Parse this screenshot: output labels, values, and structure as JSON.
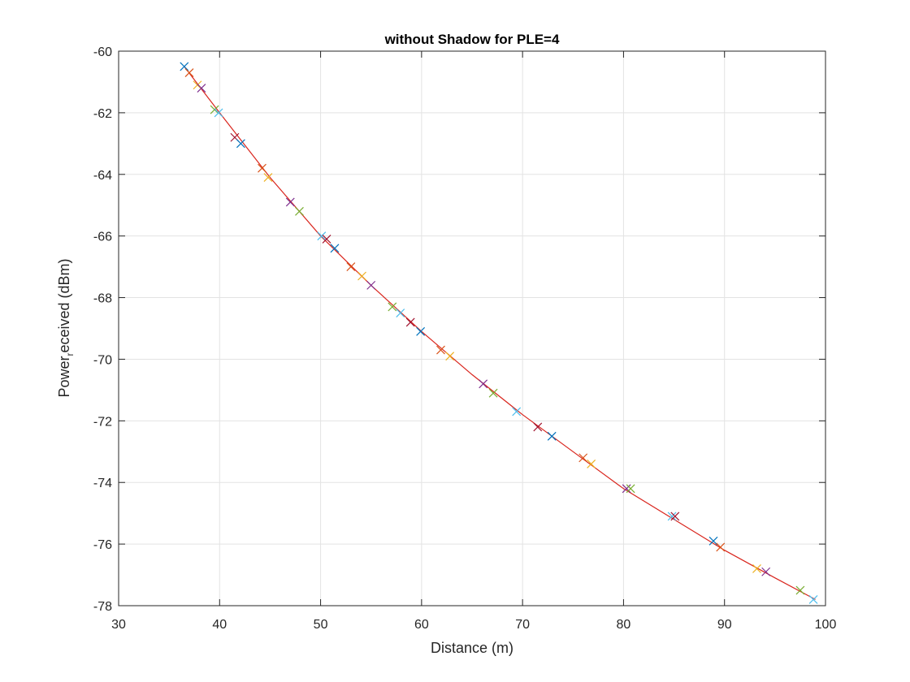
{
  "chart_data": {
    "type": "scatter",
    "title": "without Shadow for PLE=4",
    "xlabel": "Distance (m)",
    "ylabel_main": "Power",
    "ylabel_sub": "r",
    "ylabel_rest": "eceived (dBm)",
    "xlim": [
      30,
      100
    ],
    "ylim": [
      -78,
      -60
    ],
    "xticks": [
      "30",
      "40",
      "50",
      "60",
      "70",
      "80",
      "90",
      "100"
    ],
    "yticks": [
      "-60",
      "-62",
      "-64",
      "-66",
      "-68",
      "-70",
      "-72",
      "-74",
      "-76",
      "-78"
    ],
    "grid": true,
    "marker": "x",
    "curve_color": "#d9251d",
    "marker_colors": [
      "#0072bd",
      "#d95319",
      "#edb120",
      "#7e2f8e",
      "#77ac30",
      "#4dbeee",
      "#a2142f"
    ],
    "curve_x": [
      36.5,
      40,
      45,
      50,
      55,
      60,
      65,
      70,
      75,
      80,
      85,
      90,
      95,
      99
    ],
    "curve_y": [
      -60.5,
      -62.0,
      -64.1,
      -66.0,
      -67.6,
      -69.1,
      -70.5,
      -71.8,
      -73.0,
      -74.2,
      -75.2,
      -76.2,
      -77.1,
      -77.8
    ],
    "x": [
      36.5,
      37.0,
      37.8,
      38.2,
      39.5,
      39.9,
      41.5,
      42.1,
      44.2,
      44.8,
      47.0,
      47.9,
      50.1,
      50.6,
      51.4,
      53.0,
      54.1,
      55.0,
      57.1,
      57.9,
      58.9,
      59.9,
      61.9,
      62.8,
      66.1,
      67.1,
      69.4,
      71.5,
      72.9,
      76.0,
      76.8,
      80.3,
      80.7,
      84.8,
      85.1,
      88.9,
      89.6,
      93.2,
      94.1,
      97.5,
      98.8
    ],
    "y": [
      -60.5,
      -60.7,
      -61.1,
      -61.2,
      -61.9,
      -62.0,
      -62.8,
      -63.0,
      -63.8,
      -64.1,
      -64.9,
      -65.2,
      -66.0,
      -66.1,
      -66.4,
      -67.0,
      -67.3,
      -67.6,
      -68.3,
      -68.5,
      -68.8,
      -69.1,
      -69.7,
      -69.9,
      -70.8,
      -71.1,
      -71.7,
      -72.2,
      -72.5,
      -73.2,
      -73.4,
      -74.2,
      -74.2,
      -75.1,
      -75.1,
      -75.9,
      -76.1,
      -76.8,
      -76.9,
      -77.5,
      -77.8
    ]
  }
}
